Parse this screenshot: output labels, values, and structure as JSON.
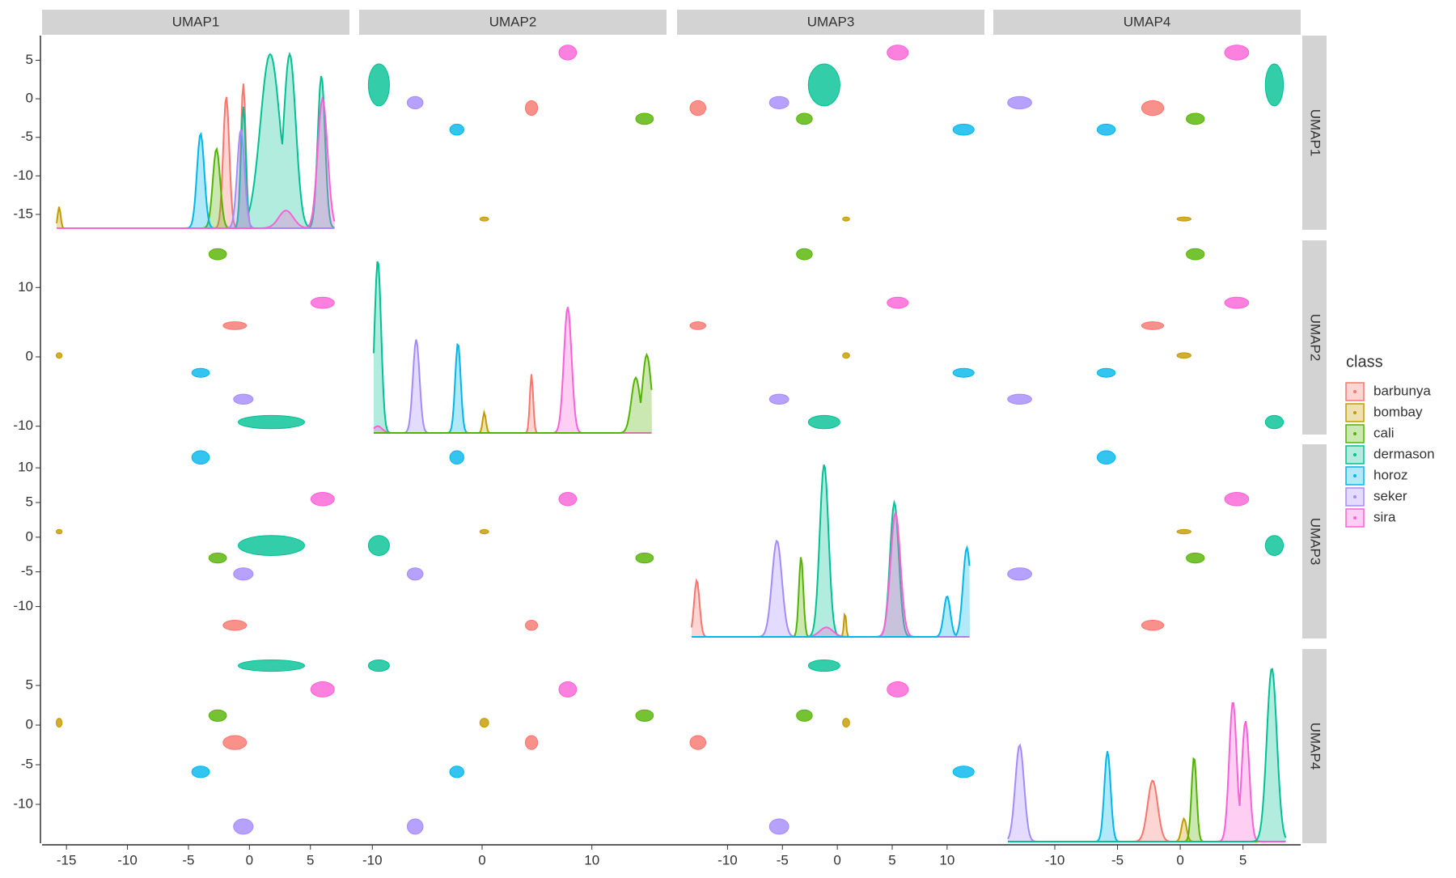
{
  "chart_data": {
    "type": "pairs",
    "variables": [
      "UMAP1",
      "UMAP2",
      "UMAP3",
      "UMAP4"
    ],
    "lims": [
      [
        -17,
        8.2
      ],
      [
        -11.2,
        16.8
      ],
      [
        -14.6,
        13.4
      ],
      [
        -14.9,
        9.6
      ]
    ],
    "ticks": [
      [
        -15,
        -10,
        -5,
        0,
        5
      ],
      [
        -10,
        0,
        10
      ],
      [
        -10,
        -5,
        0,
        5,
        10
      ],
      [
        -10,
        -5,
        0,
        5
      ]
    ],
    "legend_title": "class",
    "series": [
      {
        "name": "barbunya",
        "color": "#F8766D"
      },
      {
        "name": "bombay",
        "color": "#C49A00"
      },
      {
        "name": "cali",
        "color": "#53B400"
      },
      {
        "name": "dermason",
        "color": "#00C094"
      },
      {
        "name": "horoz",
        "color": "#00B6EB"
      },
      {
        "name": "seker",
        "color": "#A58AFF"
      },
      {
        "name": "sira",
        "color": "#FB61D7"
      }
    ],
    "clusters": [
      {
        "class": "bombay",
        "center": [
          -15.6,
          0.2,
          0.8,
          0.3
        ],
        "spread": [
          0.15,
          0.25,
          0.2,
          0.35
        ]
      },
      {
        "class": "dermason",
        "center": [
          1.8,
          -9.4,
          -1.2,
          7.5
        ],
        "spread": [
          1.7,
          0.6,
          0.9,
          0.45
        ]
      },
      {
        "class": "sira",
        "center": [
          6,
          7.8,
          5.5,
          4.5
        ],
        "spread": [
          0.6,
          0.5,
          0.6,
          0.6
        ]
      },
      {
        "class": "barbunya",
        "center": [
          -1.2,
          4.5,
          -12.7,
          -2.2
        ],
        "spread": [
          0.6,
          0.35,
          0.45,
          0.55
        ]
      },
      {
        "class": "horoz",
        "center": [
          -4,
          -2.3,
          11.5,
          -5.9
        ],
        "spread": [
          0.45,
          0.4,
          0.6,
          0.45
        ]
      },
      {
        "class": "seker",
        "center": [
          -0.5,
          -6.1,
          -5.3,
          -12.8
        ],
        "spread": [
          0.5,
          0.45,
          0.55,
          0.6
        ]
      },
      {
        "class": "cali",
        "center": [
          -2.6,
          14.8,
          -3,
          1.2
        ],
        "spread": [
          0.45,
          0.5,
          0.45,
          0.45
        ]
      }
    ],
    "densities": [
      [
        {
          "class": "barbunya",
          "peaks": [
            [
              -1.9,
              0.3,
              0.25
            ],
            [
              -0.5,
              2,
              0.2
            ]
          ]
        },
        {
          "class": "bombay",
          "peaks": [
            [
              -15.6,
              -14,
              0.12
            ]
          ]
        },
        {
          "class": "cali",
          "peaks": [
            [
              -2.7,
              -6.5,
              0.3
            ]
          ]
        },
        {
          "class": "dermason",
          "peaks": [
            [
              -0.5,
              -1,
              0.2
            ],
            [
              1.7,
              5.8,
              0.8
            ],
            [
              3.3,
              5.8,
              0.5
            ],
            [
              5.9,
              3,
              0.3
            ]
          ]
        },
        {
          "class": "horoz",
          "peaks": [
            [
              -4,
              -4.5,
              0.3
            ]
          ]
        },
        {
          "class": "seker",
          "peaks": [
            [
              -0.7,
              -4,
              0.3
            ]
          ]
        },
        {
          "class": "sira",
          "peaks": [
            [
              6,
              0,
              0.4
            ],
            [
              3,
              -14.5,
              0.6
            ]
          ]
        }
      ],
      [
        {
          "class": "dermason",
          "peaks": [
            [
              -9.5,
              14,
              0.3
            ]
          ]
        },
        {
          "class": "seker",
          "peaks": [
            [
              -6,
              2.5,
              0.3
            ]
          ]
        },
        {
          "class": "horoz",
          "peaks": [
            [
              -2.2,
              2,
              0.25
            ]
          ]
        },
        {
          "class": "bombay",
          "peaks": [
            [
              0.2,
              -8,
              0.15
            ]
          ]
        },
        {
          "class": "barbunya",
          "peaks": [
            [
              4.5,
              -2.5,
              0.15
            ]
          ]
        },
        {
          "class": "sira",
          "peaks": [
            [
              7.8,
              7.2,
              0.35
            ],
            [
              -9.5,
              -10,
              0.4
            ]
          ]
        },
        {
          "class": "cali",
          "peaks": [
            [
              14,
              -3,
              0.4
            ],
            [
              15,
              0.3,
              0.4
            ]
          ]
        }
      ],
      [
        {
          "class": "barbunya",
          "peaks": [
            [
              -12.8,
              -6.2,
              0.25
            ]
          ]
        },
        {
          "class": "seker",
          "peaks": [
            [
              -5.5,
              -0.5,
              0.45
            ]
          ]
        },
        {
          "class": "cali",
          "peaks": [
            [
              -3.3,
              -2.8,
              0.2
            ]
          ]
        },
        {
          "class": "dermason",
          "peaks": [
            [
              -1.2,
              10.5,
              0.4
            ],
            [
              5.2,
              5,
              0.4
            ]
          ]
        },
        {
          "class": "bombay",
          "peaks": [
            [
              0.7,
              -10.8,
              0.1
            ]
          ]
        },
        {
          "class": "sira",
          "peaks": [
            [
              5.3,
              3.5,
              0.45
            ],
            [
              -1,
              -13,
              0.6
            ]
          ]
        },
        {
          "class": "horoz",
          "peaks": [
            [
              10,
              -8.5,
              0.3
            ],
            [
              11.8,
              -1.5,
              0.35
            ]
          ]
        }
      ],
      [
        {
          "class": "seker",
          "peaks": [
            [
              -12.8,
              -2.5,
              0.35
            ]
          ]
        },
        {
          "class": "horoz",
          "peaks": [
            [
              -5.8,
              -3.3,
              0.25
            ]
          ]
        },
        {
          "class": "barbunya",
          "peaks": [
            [
              -2.2,
              -7,
              0.4
            ]
          ]
        },
        {
          "class": "bombay",
          "peaks": [
            [
              0.3,
              -11.8,
              0.2
            ]
          ]
        },
        {
          "class": "cali",
          "peaks": [
            [
              1.1,
              -4,
              0.2
            ]
          ]
        },
        {
          "class": "sira",
          "peaks": [
            [
              4.2,
              3,
              0.3
            ],
            [
              5.2,
              0.5,
              0.3
            ]
          ]
        },
        {
          "class": "dermason",
          "peaks": [
            [
              7.3,
              7.2,
              0.4
            ]
          ]
        }
      ]
    ]
  }
}
